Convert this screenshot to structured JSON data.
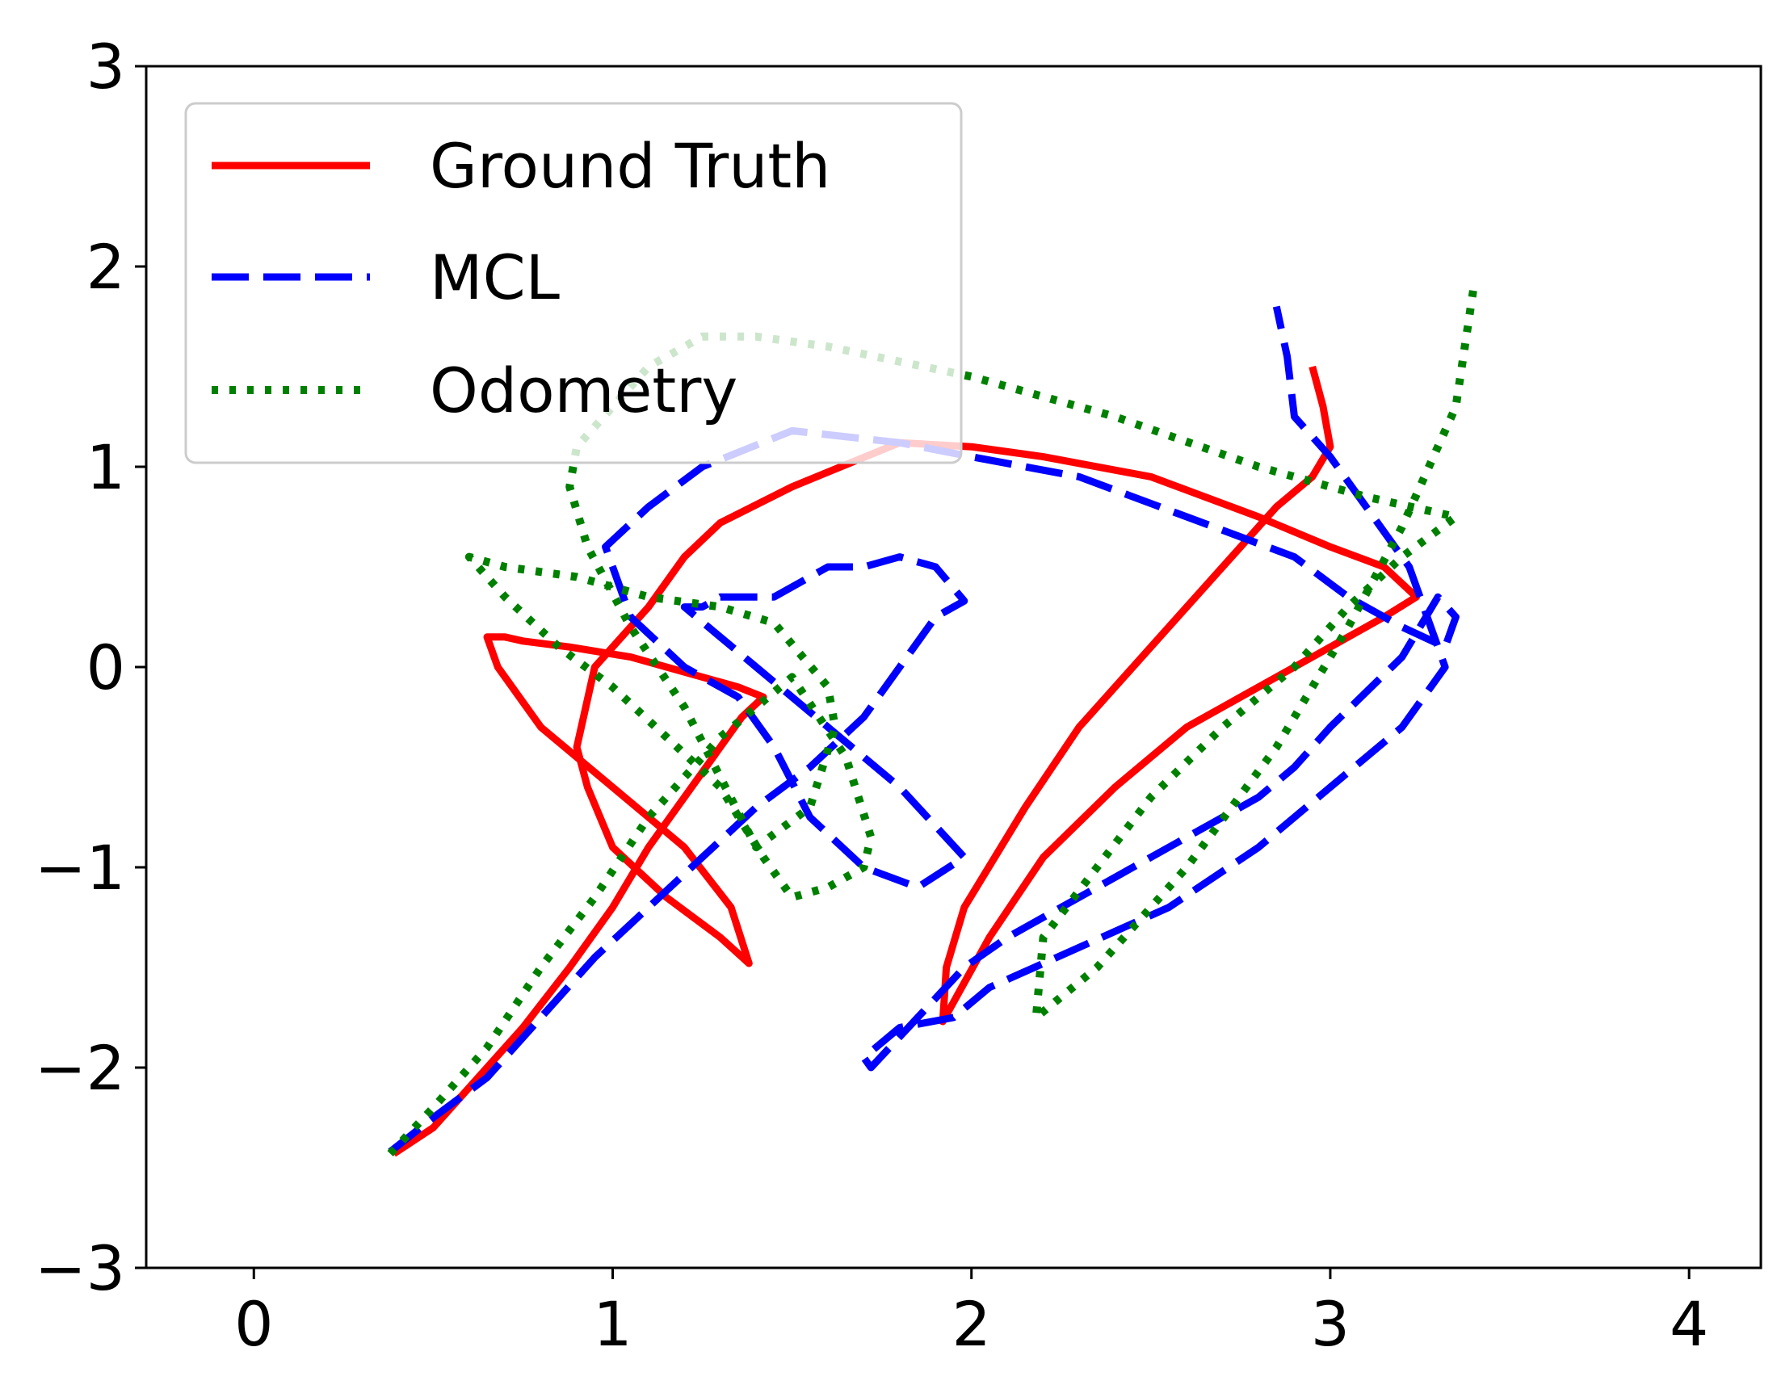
{
  "chart_data": {
    "type": "line",
    "title": "",
    "xlabel": "",
    "ylabel": "",
    "xlim": [
      -0.3,
      4.2
    ],
    "ylim": [
      -3,
      3
    ],
    "x_ticks": [
      0,
      1,
      2,
      3,
      4
    ],
    "y_ticks": [
      -3,
      -2,
      -1,
      0,
      1,
      2,
      3
    ],
    "x_tick_labels": [
      "0",
      "1",
      "2",
      "3",
      "4"
    ],
    "y_tick_labels": [
      "−3",
      "−2",
      "−1",
      "0",
      "1",
      "2",
      "3"
    ],
    "grid": false,
    "legend_position": "top-left",
    "series": [
      {
        "name": "Ground Truth",
        "color": "#ff0000",
        "style": "solid",
        "x": [
          0.39,
          0.5,
          0.6,
          0.75,
          0.88,
          1.0,
          1.1,
          1.2,
          1.28,
          1.36,
          1.42,
          1.35,
          1.25,
          1.05,
          0.88,
          0.75,
          0.7,
          0.65,
          0.68,
          0.8,
          1.0,
          1.2,
          1.33,
          1.38,
          1.3,
          1.15,
          1.0,
          0.93,
          0.9,
          0.95,
          1.1,
          1.2,
          1.3,
          1.5,
          1.8,
          2.0,
          2.2,
          2.5,
          2.8,
          3.0,
          3.15,
          3.24,
          3.15,
          2.9,
          2.6,
          2.4,
          2.2,
          2.05,
          1.92,
          1.93,
          1.98,
          2.15,
          2.3,
          2.45,
          2.6,
          2.75,
          2.85,
          2.95,
          3.0,
          2.98,
          2.95
        ],
        "y": [
          -2.43,
          -2.3,
          -2.1,
          -1.8,
          -1.5,
          -1.2,
          -0.9,
          -0.65,
          -0.45,
          -0.25,
          -0.15,
          -0.1,
          -0.05,
          0.05,
          0.1,
          0.13,
          0.15,
          0.15,
          0.0,
          -0.3,
          -0.6,
          -0.9,
          -1.2,
          -1.48,
          -1.35,
          -1.15,
          -0.9,
          -0.6,
          -0.4,
          0.0,
          0.3,
          0.55,
          0.72,
          0.9,
          1.12,
          1.1,
          1.05,
          0.95,
          0.75,
          0.6,
          0.5,
          0.35,
          0.25,
          0.0,
          -0.3,
          -0.6,
          -0.95,
          -1.35,
          -1.77,
          -1.5,
          -1.2,
          -0.7,
          -0.3,
          0.0,
          0.3,
          0.6,
          0.8,
          0.95,
          1.1,
          1.3,
          1.5
        ]
      },
      {
        "name": "MCL",
        "color": "#0000ff",
        "style": "dashed",
        "x": [
          0.38,
          0.5,
          0.65,
          0.8,
          0.95,
          1.1,
          1.25,
          1.4,
          1.55,
          1.7,
          1.8,
          1.9,
          1.98,
          1.9,
          1.8,
          1.7,
          1.6,
          1.45,
          1.3,
          1.25,
          1.2,
          1.2,
          1.4,
          1.6,
          1.8,
          1.98,
          1.85,
          1.7,
          1.55,
          1.45,
          1.35,
          1.2,
          1.05,
          0.98,
          1.1,
          1.25,
          1.5,
          1.8,
          2.0,
          2.3,
          2.6,
          2.9,
          3.05,
          3.2,
          3.32,
          3.35,
          3.3,
          3.2,
          3.0,
          2.9,
          2.8,
          2.6,
          2.4,
          2.25,
          2.1,
          1.98,
          1.85,
          1.72,
          1.7,
          1.8,
          1.95,
          2.05,
          2.3,
          2.55,
          2.8,
          3.0,
          3.2,
          3.32,
          3.22,
          3.0,
          2.9,
          2.88,
          2.85
        ],
        "y": [
          -2.42,
          -2.25,
          -2.05,
          -1.75,
          -1.45,
          -1.2,
          -0.95,
          -0.7,
          -0.5,
          -0.25,
          0.0,
          0.25,
          0.33,
          0.5,
          0.55,
          0.5,
          0.5,
          0.35,
          0.35,
          0.3,
          0.3,
          0.3,
          0.0,
          -0.3,
          -0.6,
          -0.95,
          -1.1,
          -1.0,
          -0.75,
          -0.4,
          -0.15,
          0.0,
          0.25,
          0.6,
          0.8,
          1.0,
          1.18,
          1.12,
          1.05,
          0.95,
          0.75,
          0.55,
          0.35,
          0.2,
          0.1,
          0.25,
          0.35,
          0.05,
          -0.3,
          -0.5,
          -0.65,
          -0.85,
          -1.05,
          -1.2,
          -1.35,
          -1.5,
          -1.75,
          -2.0,
          -1.95,
          -1.8,
          -1.75,
          -1.6,
          -1.4,
          -1.2,
          -0.9,
          -0.6,
          -0.3,
          0.0,
          0.5,
          1.05,
          1.25,
          1.55,
          1.8
        ]
      },
      {
        "name": "Odometry",
        "color": "#008000",
        "style": "dotted",
        "x": [
          0.38,
          0.5,
          0.65,
          0.8,
          0.95,
          1.1,
          1.3,
          1.5,
          1.65,
          1.72,
          1.7,
          1.6,
          1.5,
          1.42,
          1.3,
          1.15,
          1.0,
          0.85,
          0.7,
          0.6,
          0.7,
          0.9,
          1.1,
          1.3,
          1.45,
          1.6,
          1.62,
          1.55,
          1.4,
          1.2,
          1.05,
          0.93,
          0.88,
          0.9,
          1.0,
          1.1,
          1.25,
          1.4,
          1.6,
          2.0,
          2.4,
          2.8,
          3.1,
          3.35,
          3.2,
          3.05,
          2.9,
          2.7,
          2.5,
          2.35,
          2.2,
          2.18,
          2.35,
          2.6,
          2.85,
          3.05,
          3.2,
          3.35,
          3.4
        ],
        "y": [
          -2.43,
          -2.2,
          -1.9,
          -1.5,
          -1.15,
          -0.75,
          -0.35,
          -0.05,
          -0.45,
          -0.85,
          -1.0,
          -1.1,
          -1.15,
          -0.95,
          -0.6,
          -0.35,
          -0.1,
          0.1,
          0.35,
          0.55,
          0.5,
          0.45,
          0.35,
          0.3,
          0.22,
          -0.1,
          -0.3,
          -0.7,
          -0.9,
          -0.2,
          0.2,
          0.6,
          0.9,
          1.1,
          1.3,
          1.5,
          1.65,
          1.65,
          1.6,
          1.45,
          1.25,
          1.0,
          0.85,
          0.75,
          0.55,
          0.3,
          0.0,
          -0.3,
          -0.65,
          -1.0,
          -1.35,
          -1.75,
          -1.5,
          -1.0,
          -0.4,
          0.2,
          0.7,
          1.3,
          1.9
        ]
      }
    ]
  }
}
